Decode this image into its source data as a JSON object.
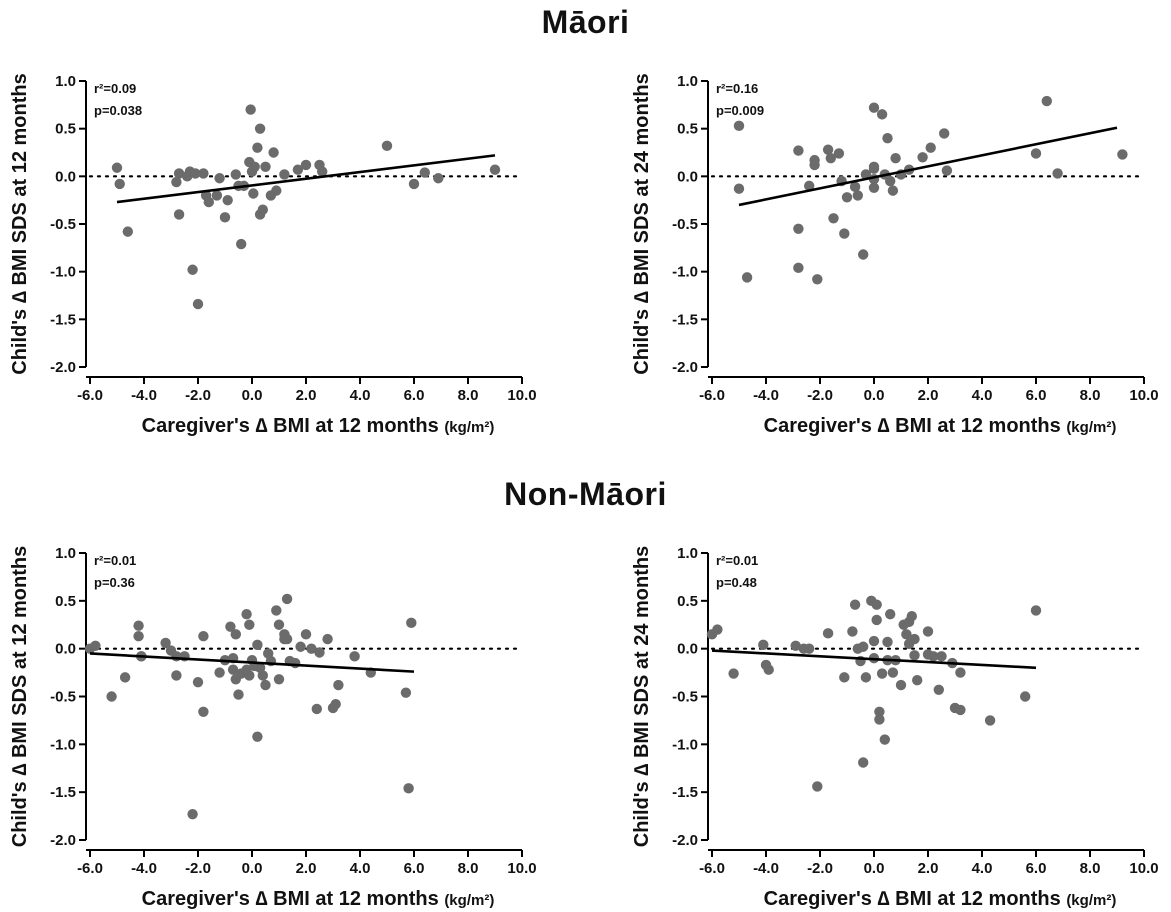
{
  "groups": [
    {
      "title": "Māori"
    },
    {
      "title": "Non-Māori"
    }
  ],
  "x_ticks": [
    "-6.0",
    "-4.0",
    "-2.0",
    "0.0",
    "2.0",
    "4.0",
    "6.0",
    "8.0",
    "10.0"
  ],
  "y_ticks": [
    "1.0",
    "0.5",
    "0.0",
    "-0.5",
    "-1.0",
    "-1.5",
    "-2.0"
  ],
  "colors": {
    "points": "#6b6b6b",
    "line": "#000000",
    "axis": "#000000"
  },
  "chart_data": [
    {
      "type": "scatter",
      "group": "Māori",
      "xlabel": "Caregiver's ∆ BMI at 12 months",
      "xlabel_unit": "(kg/m²)",
      "ylabel": "Child's ∆ BMI SDS at 12 months",
      "xlim": [
        -6,
        10
      ],
      "ylim": [
        -2,
        1
      ],
      "r2": "0.09",
      "p": "0.038",
      "stats_text": {
        "r2": "r²=0.09",
        "p": "p=0.038"
      },
      "reference_line_y": 0,
      "regression": {
        "x": [
          -5.0,
          9.0
        ],
        "y": [
          -0.27,
          0.22
        ]
      },
      "points": [
        [
          -5.0,
          0.09
        ],
        [
          -4.9,
          -0.08
        ],
        [
          -4.6,
          -0.58
        ],
        [
          -2.8,
          -0.06
        ],
        [
          -2.7,
          0.03
        ],
        [
          -2.7,
          -0.4
        ],
        [
          -2.4,
          0.0
        ],
        [
          -2.3,
          0.05
        ],
        [
          -2.2,
          -0.98
        ],
        [
          -2.1,
          0.03
        ],
        [
          -2.0,
          -1.34
        ],
        [
          -1.8,
          0.03
        ],
        [
          -1.7,
          -0.2
        ],
        [
          -1.6,
          -0.27
        ],
        [
          -1.3,
          -0.2
        ],
        [
          -1.2,
          -0.02
        ],
        [
          -1.0,
          -0.43
        ],
        [
          -0.9,
          -0.25
        ],
        [
          -0.6,
          0.02
        ],
        [
          -0.5,
          -0.1
        ],
        [
          -0.4,
          -0.71
        ],
        [
          -0.3,
          -0.1
        ],
        [
          -0.1,
          0.15
        ],
        [
          -0.05,
          0.7
        ],
        [
          0.0,
          0.05
        ],
        [
          0.05,
          -0.18
        ],
        [
          0.1,
          0.1
        ],
        [
          0.2,
          0.3
        ],
        [
          0.3,
          0.5
        ],
        [
          0.3,
          -0.4
        ],
        [
          0.4,
          -0.35
        ],
        [
          0.5,
          0.1
        ],
        [
          0.7,
          -0.2
        ],
        [
          0.8,
          0.25
        ],
        [
          0.9,
          -0.15
        ],
        [
          1.2,
          0.02
        ],
        [
          1.7,
          0.07
        ],
        [
          2.0,
          0.12
        ],
        [
          2.5,
          0.12
        ],
        [
          2.6,
          0.05
        ],
        [
          5.0,
          0.32
        ],
        [
          6.0,
          -0.08
        ],
        [
          6.4,
          0.04
        ],
        [
          6.9,
          -0.02
        ],
        [
          9.0,
          0.07
        ]
      ]
    },
    {
      "type": "scatter",
      "group": "Māori",
      "xlabel": "Caregiver's ∆ BMI at 12 months",
      "xlabel_unit": "(kg/m²)",
      "ylabel": "Child's ∆ BMI SDS at 24 months",
      "xlim": [
        -6,
        10
      ],
      "ylim": [
        -2,
        1
      ],
      "r2": "0.16",
      "p": "0.009",
      "stats_text": {
        "r2": "r²=0.16",
        "p": "p=0.009"
      },
      "reference_line_y": 0,
      "regression": {
        "x": [
          -5.0,
          9.0
        ],
        "y": [
          -0.3,
          0.51
        ]
      },
      "points": [
        [
          -5.0,
          0.53
        ],
        [
          -5.0,
          -0.13
        ],
        [
          -4.7,
          -1.06
        ],
        [
          -2.8,
          0.27
        ],
        [
          -2.8,
          -0.55
        ],
        [
          -2.8,
          -0.96
        ],
        [
          -2.4,
          -0.1
        ],
        [
          -2.2,
          0.17
        ],
        [
          -2.2,
          0.12
        ],
        [
          -2.1,
          -1.08
        ],
        [
          -1.7,
          0.28
        ],
        [
          -1.6,
          0.19
        ],
        [
          -1.5,
          -0.44
        ],
        [
          -1.3,
          0.24
        ],
        [
          -1.2,
          -0.05
        ],
        [
          -1.1,
          -0.6
        ],
        [
          -1.0,
          -0.22
        ],
        [
          -0.7,
          -0.11
        ],
        [
          -0.6,
          -0.2
        ],
        [
          -0.4,
          -0.82
        ],
        [
          -0.3,
          0.02
        ],
        [
          0.0,
          0.72
        ],
        [
          0.0,
          0.08
        ],
        [
          0.0,
          0.1
        ],
        [
          0.0,
          -0.12
        ],
        [
          0.0,
          -0.03
        ],
        [
          0.3,
          0.65
        ],
        [
          0.4,
          0.02
        ],
        [
          0.5,
          0.4
        ],
        [
          0.6,
          -0.05
        ],
        [
          0.7,
          -0.15
        ],
        [
          0.8,
          0.19
        ],
        [
          1.0,
          0.02
        ],
        [
          1.3,
          0.07
        ],
        [
          1.8,
          0.2
        ],
        [
          2.1,
          0.3
        ],
        [
          2.6,
          0.45
        ],
        [
          2.7,
          0.06
        ],
        [
          6.0,
          0.24
        ],
        [
          6.4,
          0.79
        ],
        [
          6.8,
          0.03
        ],
        [
          9.2,
          0.23
        ]
      ]
    },
    {
      "type": "scatter",
      "group": "Non-Māori",
      "xlabel": "Caregiver's ∆ BMI at 12 months",
      "xlabel_unit": "(kg/m²)",
      "ylabel": "Child's ∆ BMI SDS at 12 months",
      "xlim": [
        -6,
        10
      ],
      "ylim": [
        -2,
        1
      ],
      "r2": "0.01",
      "p": "0.36",
      "stats_text": {
        "r2": "r²=0.01",
        "p": "p=0.36"
      },
      "reference_line_y": 0,
      "regression": {
        "x": [
          -6.0,
          6.0
        ],
        "y": [
          -0.05,
          -0.24
        ]
      },
      "points": [
        [
          -6.0,
          0.0
        ],
        [
          -5.8,
          0.03
        ],
        [
          -5.2,
          -0.5
        ],
        [
          -4.7,
          -0.3
        ],
        [
          -4.2,
          0.24
        ],
        [
          -4.2,
          0.13
        ],
        [
          -4.1,
          -0.08
        ],
        [
          -4.1,
          -0.08
        ],
        [
          -3.2,
          0.06
        ],
        [
          -3.0,
          -0.02
        ],
        [
          -2.8,
          -0.08
        ],
        [
          -2.8,
          -0.28
        ],
        [
          -2.5,
          -0.08
        ],
        [
          -2.2,
          -1.73
        ],
        [
          -2.0,
          -0.35
        ],
        [
          -1.8,
          0.13
        ],
        [
          -1.8,
          -0.66
        ],
        [
          -1.2,
          -0.25
        ],
        [
          -1.0,
          -0.12
        ],
        [
          -0.8,
          0.23
        ],
        [
          -0.7,
          -0.22
        ],
        [
          -0.7,
          -0.1
        ],
        [
          -0.6,
          0.15
        ],
        [
          -0.6,
          -0.32
        ],
        [
          -0.5,
          -0.48
        ],
        [
          -0.4,
          -0.26
        ],
        [
          -0.2,
          0.36
        ],
        [
          -0.2,
          -0.22
        ],
        [
          -0.1,
          0.25
        ],
        [
          -0.1,
          -0.28
        ],
        [
          0.0,
          -0.12
        ],
        [
          0.1,
          -0.18
        ],
        [
          0.2,
          -0.92
        ],
        [
          0.2,
          0.04
        ],
        [
          0.3,
          -0.2
        ],
        [
          0.4,
          -0.28
        ],
        [
          0.5,
          -0.38
        ],
        [
          0.6,
          -0.05
        ],
        [
          0.7,
          -0.13
        ],
        [
          0.9,
          0.4
        ],
        [
          1.0,
          0.25
        ],
        [
          1.0,
          -0.32
        ],
        [
          1.2,
          0.15
        ],
        [
          1.2,
          0.1
        ],
        [
          1.3,
          0.52
        ],
        [
          1.3,
          0.1
        ],
        [
          1.4,
          -0.13
        ],
        [
          1.6,
          -0.15
        ],
        [
          1.8,
          0.02
        ],
        [
          2.0,
          0.15
        ],
        [
          2.2,
          0.0
        ],
        [
          2.4,
          -0.63
        ],
        [
          2.5,
          -0.04
        ],
        [
          2.8,
          0.1
        ],
        [
          3.0,
          -0.62
        ],
        [
          3.1,
          -0.58
        ],
        [
          3.2,
          -0.38
        ],
        [
          3.8,
          -0.08
        ],
        [
          4.4,
          -0.25
        ],
        [
          5.7,
          -0.46
        ],
        [
          5.8,
          -1.46
        ],
        [
          5.9,
          0.27
        ]
      ]
    },
    {
      "type": "scatter",
      "group": "Non-Māori",
      "xlabel": "Caregiver's ∆ BMI at 12 months",
      "xlabel_unit": "(kg/m²)",
      "ylabel": "Child's ∆ BMI SDS at 24 months",
      "xlim": [
        -6,
        10
      ],
      "ylim": [
        -2,
        1
      ],
      "r2": "0.01",
      "p": "0.48",
      "stats_text": {
        "r2": "r²=0.01",
        "p": "p=0.48"
      },
      "reference_line_y": 0,
      "regression": {
        "x": [
          -6.0,
          6.0
        ],
        "y": [
          -0.02,
          -0.2
        ]
      },
      "points": [
        [
          -6.0,
          0.15
        ],
        [
          -5.8,
          0.2
        ],
        [
          -5.2,
          -0.26
        ],
        [
          -4.1,
          0.04
        ],
        [
          -4.0,
          -0.17
        ],
        [
          -3.9,
          -0.22
        ],
        [
          -2.9,
          0.03
        ],
        [
          -2.6,
          0.0
        ],
        [
          -2.4,
          0.0
        ],
        [
          -2.1,
          -1.44
        ],
        [
          -1.7,
          0.16
        ],
        [
          -1.1,
          -0.3
        ],
        [
          -0.8,
          0.18
        ],
        [
          -0.7,
          0.46
        ],
        [
          -0.6,
          0.0
        ],
        [
          -0.5,
          -0.13
        ],
        [
          -0.4,
          -1.19
        ],
        [
          -0.4,
          0.02
        ],
        [
          -0.3,
          -0.3
        ],
        [
          -0.1,
          0.5
        ],
        [
          0.0,
          -0.1
        ],
        [
          0.0,
          0.08
        ],
        [
          0.1,
          0.46
        ],
        [
          0.1,
          0.3
        ],
        [
          0.2,
          -0.66
        ],
        [
          0.2,
          -0.74
        ],
        [
          0.3,
          -0.26
        ],
        [
          0.4,
          -0.95
        ],
        [
          0.5,
          -0.12
        ],
        [
          0.5,
          0.07
        ],
        [
          0.6,
          0.36
        ],
        [
          0.7,
          -0.25
        ],
        [
          0.8,
          -0.12
        ],
        [
          1.0,
          -0.38
        ],
        [
          1.1,
          0.25
        ],
        [
          1.2,
          0.15
        ],
        [
          1.3,
          0.28
        ],
        [
          1.3,
          0.05
        ],
        [
          1.4,
          0.34
        ],
        [
          1.5,
          0.1
        ],
        [
          1.5,
          -0.07
        ],
        [
          1.6,
          -0.33
        ],
        [
          2.0,
          -0.06
        ],
        [
          2.0,
          0.18
        ],
        [
          2.2,
          -0.08
        ],
        [
          2.4,
          -0.43
        ],
        [
          2.5,
          -0.08
        ],
        [
          2.9,
          -0.15
        ],
        [
          3.0,
          -0.62
        ],
        [
          3.2,
          -0.64
        ],
        [
          3.2,
          -0.25
        ],
        [
          4.3,
          -0.75
        ],
        [
          5.6,
          -0.5
        ],
        [
          6.0,
          0.4
        ]
      ]
    }
  ]
}
